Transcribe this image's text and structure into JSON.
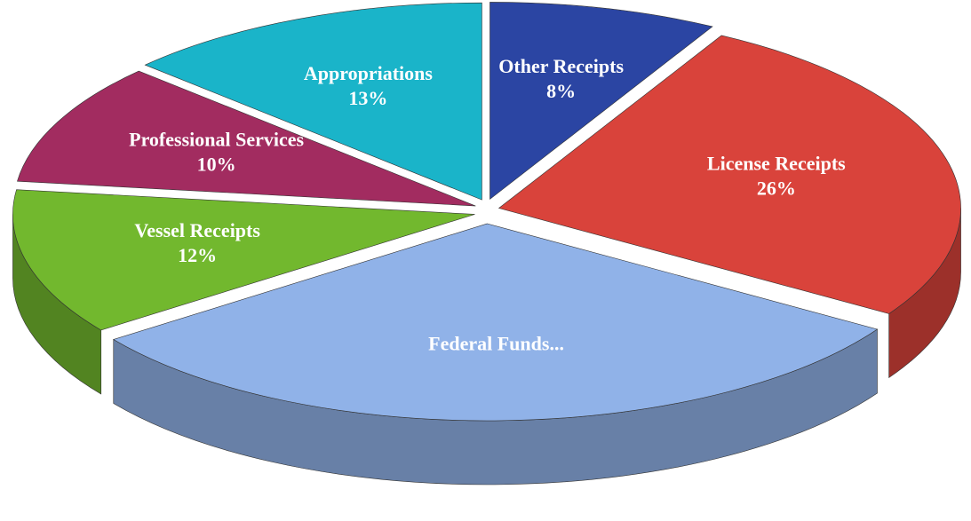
{
  "chart_data": {
    "type": "pie3d",
    "categories": [
      "Other Receipts",
      "License Receipts",
      "Federal Funds...",
      "Vessel Receipts",
      "Professional Services",
      "Appropriations"
    ],
    "values": [
      8,
      26,
      31,
      12,
      10,
      13
    ],
    "value_labels": [
      "8%",
      "26%",
      null,
      "12%",
      "10%",
      "13%"
    ],
    "colors": [
      "#2b45a3",
      "#d9433b",
      "#90b2e8",
      "#72b82e",
      "#a22c60",
      "#1ab4c9"
    ]
  }
}
